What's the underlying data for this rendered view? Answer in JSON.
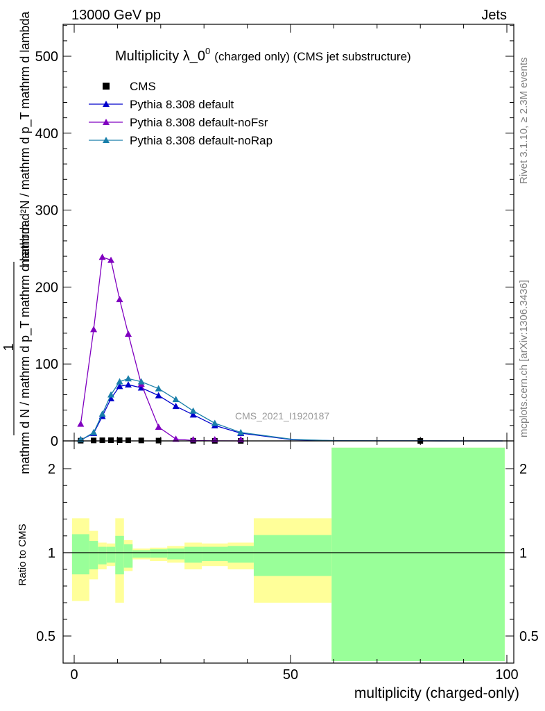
{
  "header": {
    "left": "13000 GeV pp",
    "right": "Jets"
  },
  "side_labels": {
    "rivet": "Rivet 3.1.10, ≥ 2.3M events",
    "mcplots": "mcplots.cern.ch [arXiv:1306.3436]"
  },
  "watermark": "CMS_2021_I1920187",
  "chart_data": [
    {
      "type": "line",
      "title": "Multiplicity λ_0",
      "title_superscript": "0",
      "subtitle": "(charged only) (CMS jet substructure)",
      "ylabel_numerator": "1",
      "ylabel_denominator": "mathrm d N / mathrm d p_T mathrm d lambda",
      "ylabel_extra": "mathrm d²N / mathrm d p_T mathrm d lambda",
      "ylim": [
        0,
        540
      ],
      "xlim": [
        -1.5,
        100
      ],
      "yticks": [
        0,
        100,
        200,
        300,
        400,
        500
      ],
      "xticks": [
        0,
        50,
        100
      ],
      "series": [
        {
          "name": "CMS",
          "color": "#000000",
          "marker": "square",
          "x": [
            1.5,
            4.5,
            6.5,
            8.5,
            10.5,
            12.5,
            15.5,
            19.5,
            27.5,
            32.5,
            38.5,
            80.0
          ],
          "values": [
            0.3,
            0.6,
            0.8,
            0.9,
            0.9,
            0.8,
            0.6,
            0.4,
            0.2,
            0.1,
            0.05,
            0.01
          ]
        },
        {
          "name": "Pythia 8.308 default",
          "color": "#0000cc",
          "marker": "triangle",
          "x": [
            1.5,
            4.5,
            6.5,
            8.5,
            10.5,
            12.5,
            15.5,
            19.5,
            23.5,
            27.5,
            32.5,
            38.5,
            50.5,
            60,
            70,
            80,
            90,
            99
          ],
          "values": [
            1,
            10,
            32,
            55,
            71,
            73,
            69,
            59,
            45,
            34,
            20,
            10,
            1.5,
            0.3,
            0.1,
            0.05,
            0.02,
            0.01
          ]
        },
        {
          "name": "Pythia 8.308 default-noFsr",
          "color": "#8000c0",
          "marker": "triangle",
          "x": [
            1.5,
            4.5,
            6.5,
            8.5,
            10.5,
            12.5,
            15.5,
            19.5,
            23.5,
            27.5,
            32.5,
            38.5
          ],
          "values": [
            22,
            145,
            239,
            235,
            184,
            139,
            74,
            18,
            2.5,
            0.5,
            0.1,
            0.02
          ]
        },
        {
          "name": "Pythia 8.308 default-noRap",
          "color": "#1a7faa",
          "marker": "triangle",
          "x": [
            1.5,
            4.5,
            6.5,
            8.5,
            10.5,
            12.5,
            15.5,
            19.5,
            23.5,
            27.5,
            32.5,
            38.5,
            50.5,
            60,
            70,
            80,
            90,
            99
          ],
          "values": [
            1,
            11,
            35,
            60,
            77,
            81,
            77,
            68,
            54,
            39,
            23,
            11,
            2,
            0.4,
            0.1,
            0.05,
            0.02,
            0.01
          ]
        }
      ]
    },
    {
      "type": "area",
      "ylabel": "Ratio to CMS",
      "xlabel": "multiplicity (charged-only)",
      "ylim": [
        0.35,
        2.25
      ],
      "yticks": [
        0.5,
        1,
        2
      ],
      "xticks": [
        0,
        50,
        100
      ],
      "bands": [
        {
          "x0": -0.5,
          "x1": 3.5,
          "y1_lo": 0.87,
          "y1_hi": 1.22,
          "y2_lo": 0.71,
          "y2_hi": 1.41
        },
        {
          "x0": 3.5,
          "x1": 5.5,
          "y1_lo": 0.9,
          "y1_hi": 1.14,
          "y2_lo": 0.84,
          "y2_hi": 1.26
        },
        {
          "x0": 5.5,
          "x1": 7.5,
          "y1_lo": 0.93,
          "y1_hi": 1.07,
          "y2_lo": 0.9,
          "y2_hi": 1.12
        },
        {
          "x0": 7.5,
          "x1": 9.5,
          "y1_lo": 0.94,
          "y1_hi": 1.07,
          "y2_lo": 0.92,
          "y2_hi": 1.11
        },
        {
          "x0": 9.5,
          "x1": 11.5,
          "y1_lo": 0.87,
          "y1_hi": 1.2,
          "y2_lo": 0.7,
          "y2_hi": 1.41
        },
        {
          "x0": 11.5,
          "x1": 13.5,
          "y1_lo": 0.91,
          "y1_hi": 1.1,
          "y2_lo": 0.89,
          "y2_hi": 1.15
        },
        {
          "x0": 13.5,
          "x1": 17.5,
          "y1_lo": 0.97,
          "y1_hi": 1.03,
          "y2_lo": 0.96,
          "y2_hi": 1.05
        },
        {
          "x0": 17.5,
          "x1": 21.5,
          "y1_lo": 0.97,
          "y1_hi": 1.04,
          "y2_lo": 0.95,
          "y2_hi": 1.06
        },
        {
          "x0": 21.5,
          "x1": 25.5,
          "y1_lo": 0.96,
          "y1_hi": 1.05,
          "y2_lo": 0.94,
          "y2_hi": 1.08
        },
        {
          "x0": 25.5,
          "x1": 29.5,
          "y1_lo": 0.94,
          "y1_hi": 1.07,
          "y2_lo": 0.9,
          "y2_hi": 1.12
        },
        {
          "x0": 29.5,
          "x1": 35.5,
          "y1_lo": 0.95,
          "y1_hi": 1.07,
          "y2_lo": 0.92,
          "y2_hi": 1.11
        },
        {
          "x0": 35.5,
          "x1": 41.5,
          "y1_lo": 0.94,
          "y1_hi": 1.08,
          "y2_lo": 0.9,
          "y2_hi": 1.12
        },
        {
          "x0": 41.5,
          "x1": 59.5,
          "y1_lo": 0.86,
          "y1_hi": 1.21,
          "y2_lo": 0.7,
          "y2_hi": 1.41
        },
        {
          "x0": 59.5,
          "x1": 99.5,
          "y1_lo": 0.35,
          "y1_hi": 2.25,
          "y2_lo": 0.35,
          "y2_hi": 2.25
        }
      ],
      "colors": {
        "inner": "#99ff99",
        "outer": "#ffff99"
      }
    }
  ]
}
